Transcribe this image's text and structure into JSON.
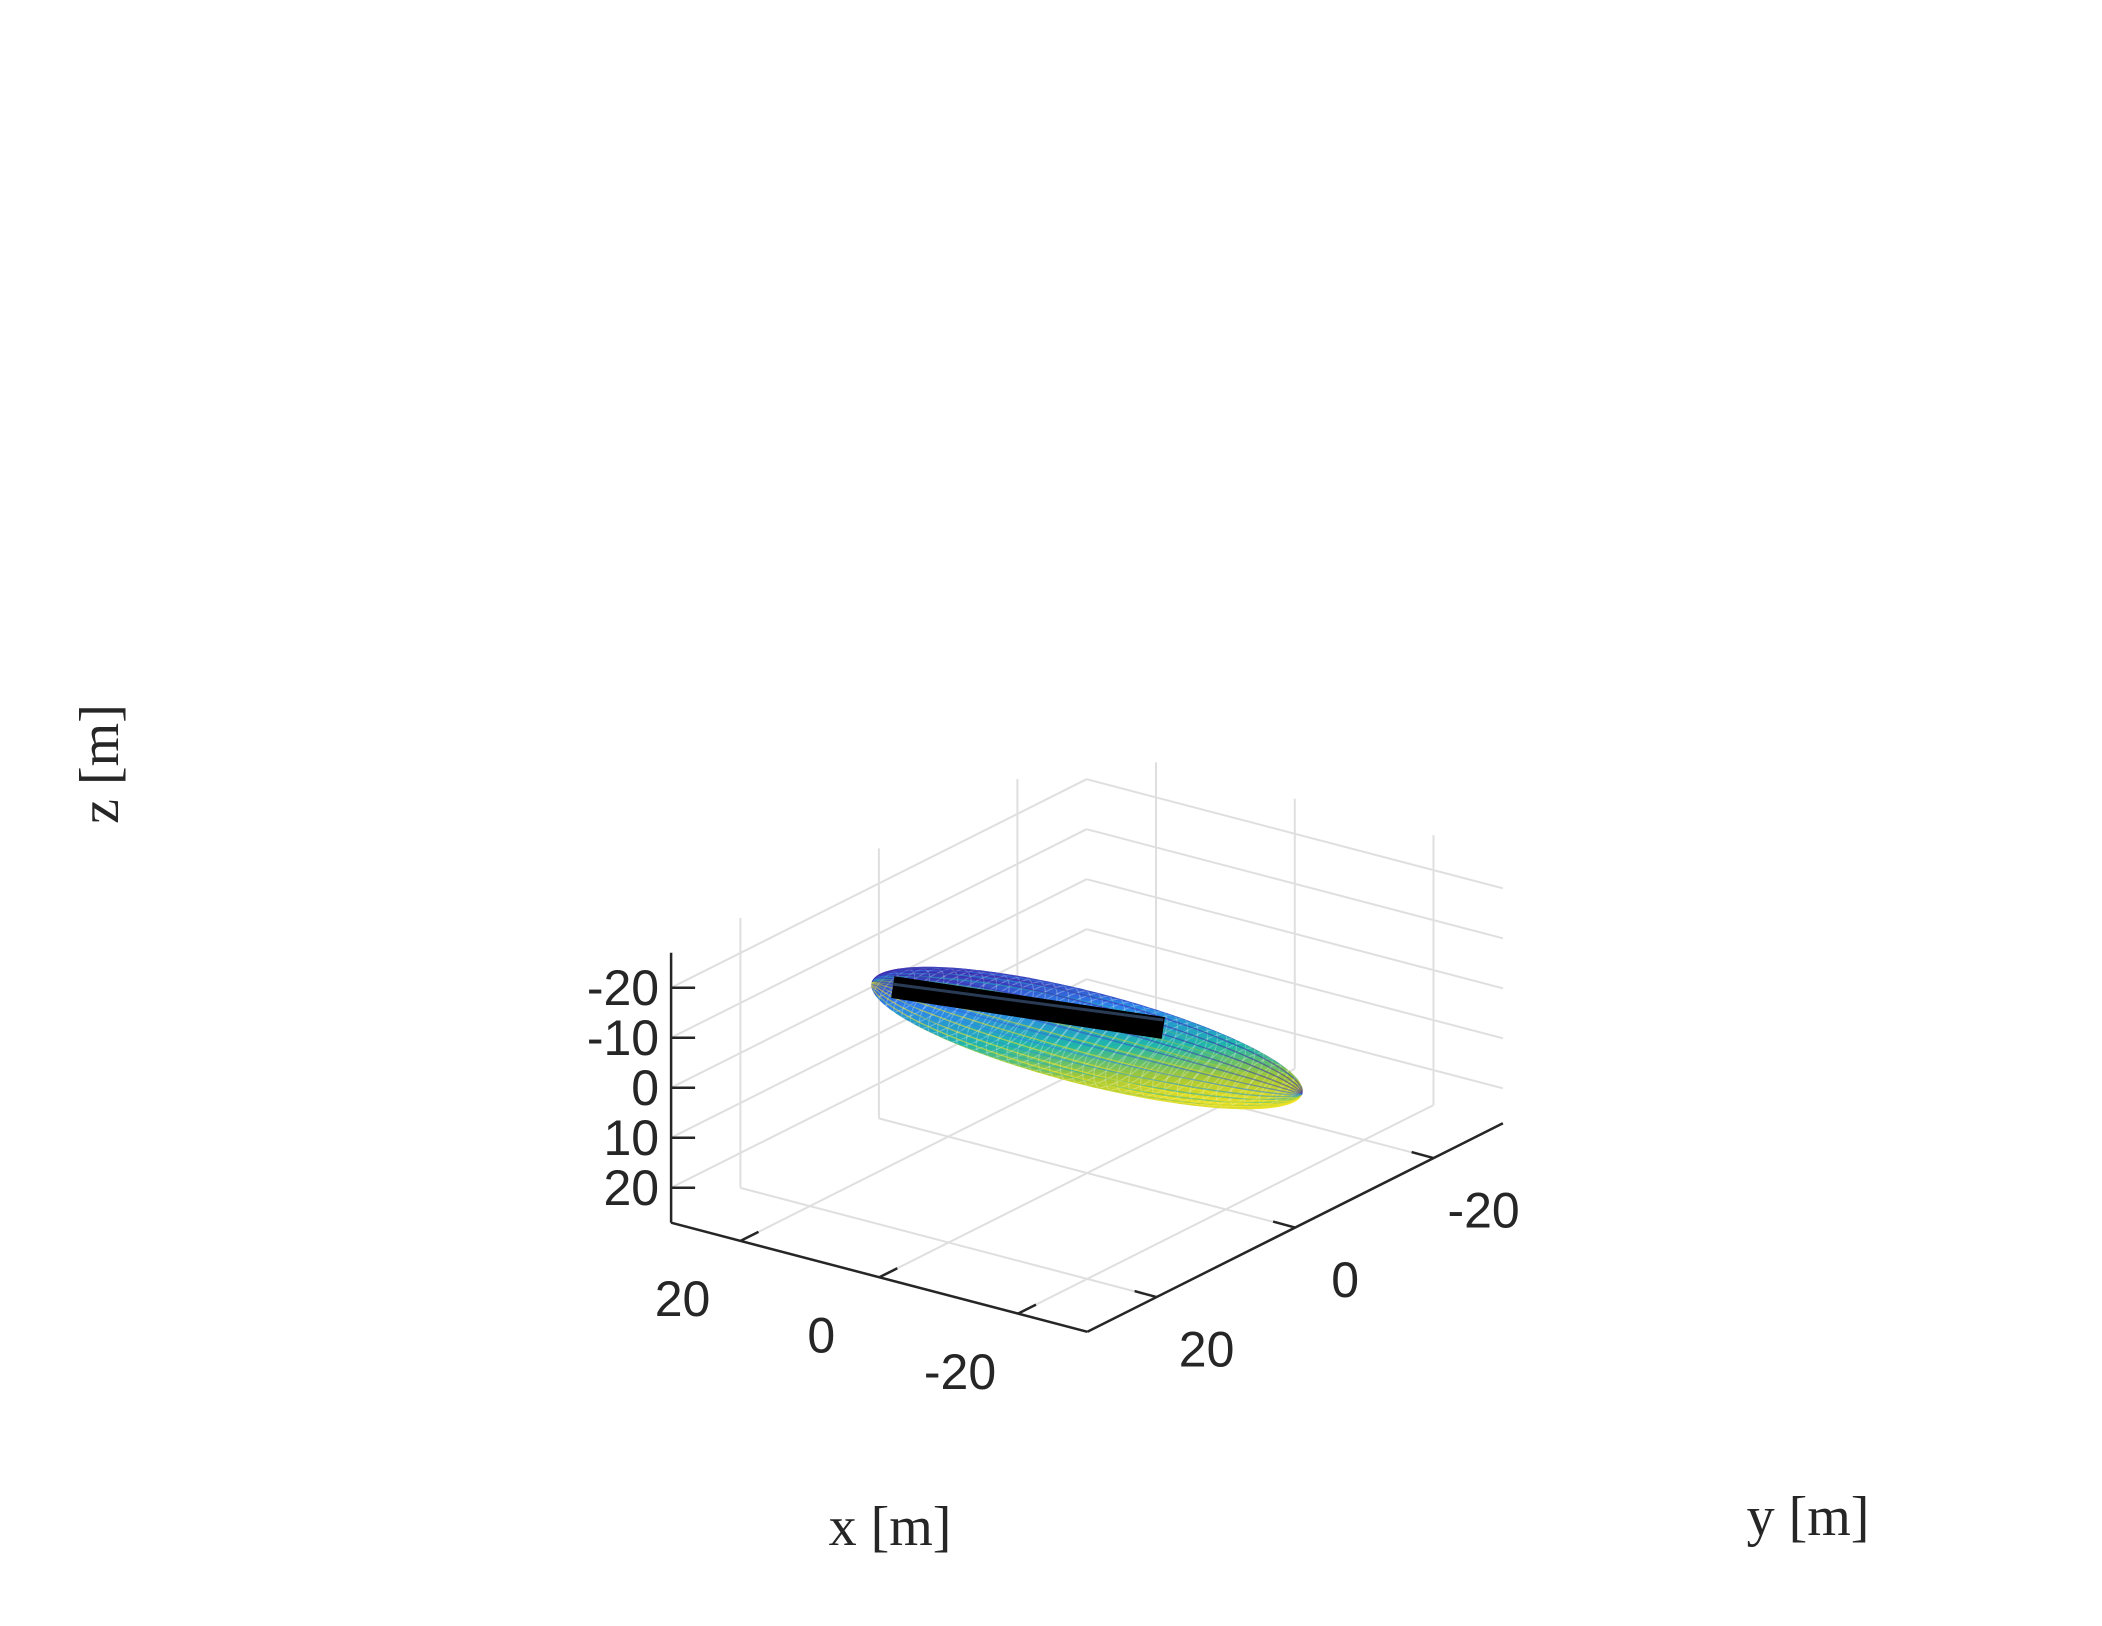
{
  "chart_data": {
    "type": "surface3d",
    "title": "",
    "xlabel": "x [m]",
    "ylabel": "y [m]",
    "zlabel": "z [m]",
    "xlim": [
      -30,
      30
    ],
    "ylim": [
      -30,
      30
    ],
    "zlim": [
      -27,
      27
    ],
    "z_direction": "reverse",
    "y_direction": "reverse",
    "x_ticks": [
      {
        "value": -20,
        "label": "-20"
      },
      {
        "value": 0,
        "label": "0"
      },
      {
        "value": 20,
        "label": "20"
      }
    ],
    "y_ticks": [
      {
        "value": -20,
        "label": "-20"
      },
      {
        "value": 0,
        "label": "0"
      },
      {
        "value": 20,
        "label": "20"
      }
    ],
    "z_ticks": [
      {
        "value": -20,
        "label": "-20"
      },
      {
        "value": -10,
        "label": "-10"
      },
      {
        "value": 0,
        "label": "0"
      },
      {
        "value": 10,
        "label": "10"
      },
      {
        "value": 20,
        "label": "20"
      }
    ],
    "grid": true,
    "surface": {
      "shape": "ellipsoid",
      "center": [
        0,
        0,
        0
      ],
      "semi_axes": [
        31,
        7,
        7
      ],
      "colormap": "parula",
      "color_by": "z",
      "mesh_color_top": "#3e26a8",
      "mesh_color_mid": "#20b2aa",
      "mesh_color_bottom": "#f9e51f"
    },
    "line": {
      "color": "#000000",
      "from": [
        -11,
        0,
        -6
      ],
      "to": [
        28,
        0,
        0
      ]
    }
  }
}
